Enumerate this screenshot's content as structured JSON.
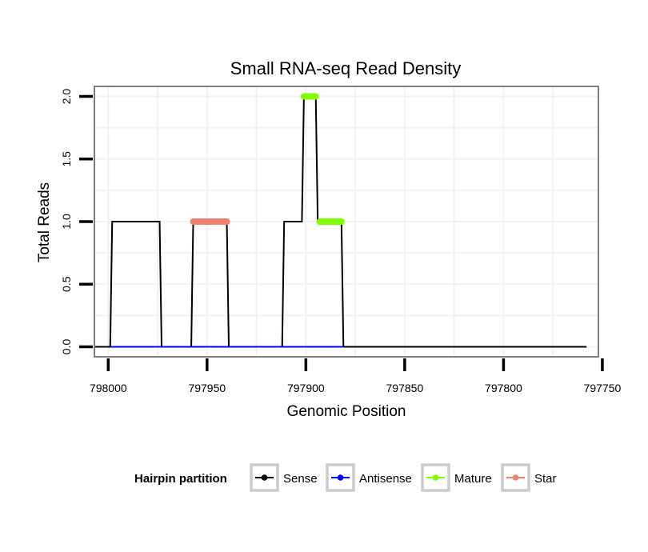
{
  "chart_data": {
    "type": "line",
    "title": "Small RNA-seq Read Density",
    "xlabel": "Genomic Position",
    "ylabel": "Total Reads",
    "x_reversed": true,
    "xlim": [
      798007,
      797752
    ],
    "ylim": [
      -0.08,
      2.08
    ],
    "xticks": [
      798000,
      797950,
      797900,
      797850,
      797800,
      797750
    ],
    "xtick_labels": [
      "798000",
      "797950",
      "797900",
      "797850",
      "797800",
      "797750"
    ],
    "yticks": [
      0,
      0.5,
      1,
      1.5,
      2
    ],
    "ytick_labels": [
      "0.0",
      "0.5",
      "1.0",
      "1.5",
      "2.0"
    ],
    "grid": true,
    "legend_position": "bottom",
    "legend_title": "Hairpin partition",
    "series": [
      {
        "name": "Sense",
        "color": "#000000",
        "type": "line",
        "x": [
          798007,
          797999,
          797998,
          797974,
          797973,
          797958,
          797957,
          797940,
          797939,
          797912,
          797911,
          797902,
          797901,
          797895,
          797894,
          797882,
          797881,
          797758
        ],
        "y": [
          0,
          0,
          1,
          1,
          0,
          0,
          1,
          1,
          0,
          0,
          1,
          1,
          2,
          2,
          1,
          1,
          0,
          0
        ]
      },
      {
        "name": "Antisense",
        "color": "#0000ff",
        "type": "line",
        "x": [
          797999,
          797881
        ],
        "y": [
          0,
          0
        ]
      },
      {
        "name": "Mature",
        "color": "#7fff00",
        "type": "segment",
        "segments": [
          {
            "x": [
              797901,
              797895
            ],
            "y": 2
          },
          {
            "x": [
              797893,
              797882
            ],
            "y": 1
          }
        ]
      },
      {
        "name": "Star",
        "color": "#f08070",
        "type": "segment",
        "segments": [
          {
            "x": [
              797957,
              797940
            ],
            "y": 1
          }
        ]
      }
    ]
  }
}
